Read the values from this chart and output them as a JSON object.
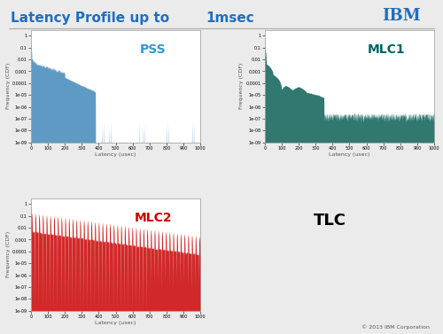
{
  "title_normal": "Latency Profile up to ",
  "title_bold": "1msec",
  "title_color": "#1F6FBF",
  "title_fontsize": 11,
  "ibm_logo_color": "#1F6FBF",
  "copyright": "© 2013 IBM Corporation",
  "background_color": "#ebebeb",
  "plot_bg_color": "#ffffff",
  "pss_color": "#4d8fbe",
  "mlc1_color": "#1a6b60",
  "mlc2_color": "#cc1111",
  "labels": [
    "PSS",
    "MLC1",
    "MLC2",
    "TLC"
  ],
  "label_colors": [
    "#3399cc",
    "#006666",
    "#cc0000",
    "#000000"
  ],
  "ylabel": "Frequency (CDF)",
  "xlabel": "Latency (usec)",
  "xlim": [
    0,
    1000
  ],
  "yticks": [
    1e-09,
    1e-08,
    1e-07,
    1e-06,
    1e-05,
    0.0001,
    0.001,
    0.01,
    0.1,
    1
  ],
  "ytick_labels": [
    "1e-09",
    "1e-08",
    "1e-07",
    "1e-06",
    "1e-05",
    "0,0001",
    "0,001",
    "0,01",
    "0,1",
    "1"
  ],
  "xticks": [
    0,
    100,
    200,
    300,
    400,
    500,
    600,
    700,
    800,
    900,
    1000
  ],
  "xtick_labels": [
    "0",
    "100",
    "200",
    "300",
    "400",
    "500",
    "600",
    "700",
    "800",
    "900",
    "1000"
  ]
}
